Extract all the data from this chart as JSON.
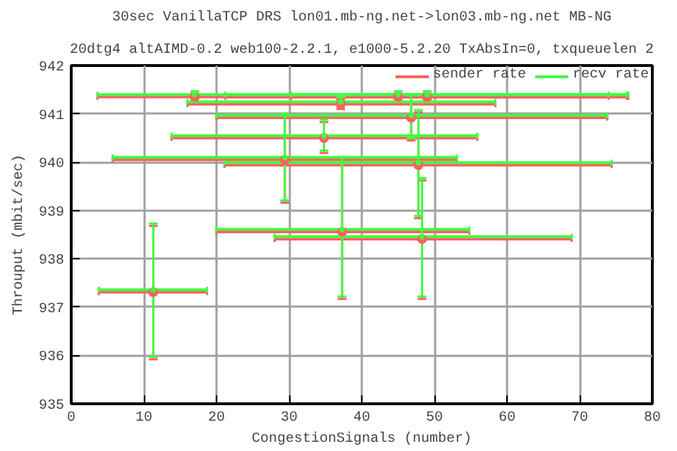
{
  "chart_data": {
    "type": "scatter",
    "title": "30sec VanillaTCP DRS lon01.mb-ng.net->lon03.mb-ng.net MB-NG",
    "subtitle": "20dtg4 altAIMD-0.2 web100-2.2.1, e1000-5.2.20 TxAbsIn=0, txqueuelen 2",
    "xlabel": "CongestionSignals (number)",
    "ylabel": "Throuput (mbit/sec)",
    "xlim": [
      0,
      80
    ],
    "xticks": [
      0,
      10,
      20,
      30,
      40,
      50,
      60,
      70,
      80
    ],
    "ylim": [
      935,
      942
    ],
    "yticks": [
      935,
      936,
      937,
      938,
      939,
      940,
      941,
      942
    ],
    "grid": true,
    "legend": "top right",
    "marker": "circle",
    "series": [
      {
        "name": "sender rate",
        "color": "#ff6060",
        "x": [
          17,
          45,
          49,
          37.1,
          46.8,
          34.8,
          47.8,
          29.4,
          37.3,
          48.3,
          11.3
        ],
        "values": [
          941.35,
          941.35,
          941.35,
          941.2,
          940.92,
          940.5,
          939.94,
          940.05,
          938.56,
          938.41,
          937.31
        ],
        "errors": [
          [
            941.3,
            941.42
          ],
          [
            941.3,
            941.42
          ],
          [
            941.3,
            941.42
          ],
          [
            941.1,
            941.3
          ],
          [
            940.45,
            941.35
          ],
          [
            940.19,
            940.83
          ],
          [
            938.84,
            941.03
          ],
          [
            939.16,
            940.96
          ],
          [
            937.17,
            940.05
          ],
          [
            937.17,
            939.62
          ],
          [
            935.92,
            938.68
          ]
        ],
        "xerrors": [
          [
            3.6,
            76.7
          ],
          [
            21.2,
            76.5
          ],
          [
            30.3,
            74
          ],
          [
            16,
            58.4
          ],
          [
            20,
            73.8
          ],
          [
            13.8,
            55.9
          ],
          [
            21.1,
            74.4
          ],
          [
            5.7,
            53.1
          ],
          [
            20,
            54.8
          ],
          [
            28,
            68.9
          ],
          [
            3.8,
            18.7
          ]
        ]
      },
      {
        "name": "recv rate",
        "color": "#40ff40",
        "x": [
          17,
          45,
          49,
          37.1,
          46.8,
          34.8,
          47.8,
          29.4,
          37.3,
          48.3,
          11.3
        ],
        "values": [
          941.4,
          941.4,
          941.4,
          941.25,
          940.97,
          940.55,
          939.99,
          940.1,
          938.61,
          938.46,
          937.36
        ],
        "errors": [
          [
            941.35,
            941.47
          ],
          [
            941.35,
            941.47
          ],
          [
            941.35,
            941.47
          ],
          [
            941.15,
            941.35
          ],
          [
            940.5,
            941.4
          ],
          [
            940.24,
            940.88
          ],
          [
            938.89,
            941.08
          ],
          [
            939.21,
            941.01
          ],
          [
            937.22,
            940.1
          ],
          [
            937.22,
            939.67
          ],
          [
            935.97,
            938.73
          ]
        ],
        "xerrors": [
          [
            3.6,
            76.7
          ],
          [
            21.2,
            76.5
          ],
          [
            30.3,
            74
          ],
          [
            16,
            58.4
          ],
          [
            20,
            73.8
          ],
          [
            13.8,
            55.9
          ],
          [
            21.1,
            74.4
          ],
          [
            5.7,
            53.1
          ],
          [
            20,
            54.8
          ],
          [
            28,
            68.9
          ],
          [
            3.8,
            18.7
          ]
        ]
      }
    ]
  }
}
